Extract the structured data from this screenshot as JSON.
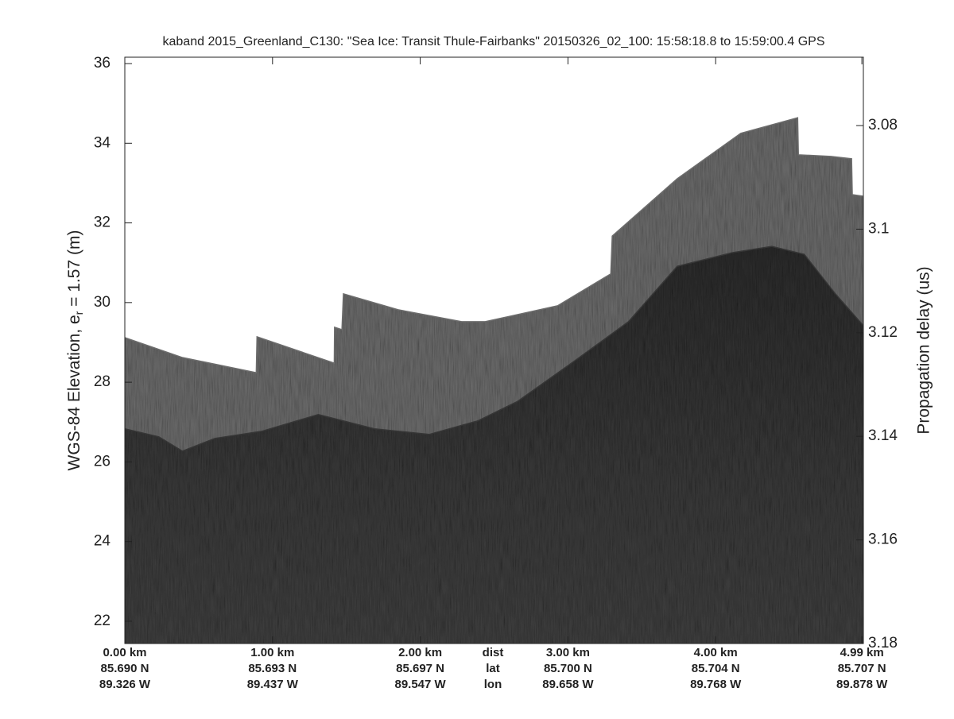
{
  "chart_data": {
    "type": "area",
    "title": "kaband 2015_Greenland_C130: \"Sea Ice: Transit Thule-Fairbanks\"  20150326_02_100: 15:58:18.8 to 15:59:00.4 GPS",
    "ylabel": [
      "WGS-84 Elevation, e",
      "r",
      " = 1.57 (m)"
    ],
    "y2label": "Propagation delay (us)",
    "xlim": [
      0,
      5.0
    ],
    "xticks": [
      {
        "value": 0,
        "label": "0.00 km"
      },
      {
        "value": 1,
        "label": "1.00 km"
      },
      {
        "value": 2,
        "label": "2.00 km"
      },
      {
        "value": 3,
        "label": "3.00 km"
      },
      {
        "value": 4,
        "label": "4.00 km"
      },
      {
        "value": 4.99,
        "label": "4.99 km"
      }
    ],
    "lat_labels": [
      "85.690 N",
      "85.693 N",
      "85.697 N",
      "85.700 N",
      "85.704 N",
      "85.707 N"
    ],
    "lon_labels": [
      "89.326 W",
      "89.437 W",
      "89.547 W",
      "89.658 W",
      "89.768 W",
      "89.878 W"
    ],
    "row_names": [
      "dist",
      "lat",
      "lon"
    ],
    "ylim": [
      21.44,
      36.16
    ],
    "yticks": [
      22,
      24,
      26,
      28,
      30,
      32,
      34,
      36
    ],
    "y2lim": [
      3.18,
      3.0668
    ],
    "y2ticks": [
      3.08,
      3.1,
      3.12,
      3.14,
      3.16,
      3.18
    ],
    "series": [
      {
        "color": "#6d6d6d",
        "x": [
          0,
          0.39,
          0.89,
          0.895,
          1.418,
          1.42,
          1.47,
          1.48,
          1.85,
          2.28,
          2.44,
          2.93,
          3.29,
          3.3,
          3.74,
          4.17,
          4.555,
          4.56,
          4.78,
          4.92,
          4.925,
          5.0
        ],
        "values": [
          29.12,
          28.62,
          28.24,
          29.14,
          28.48,
          29.38,
          29.32,
          30.22,
          29.82,
          29.52,
          29.52,
          29.92,
          30.72,
          31.67,
          33.11,
          34.25,
          34.64,
          33.71,
          33.67,
          33.61,
          32.71,
          32.67
        ]
      },
      {
        "color": "#363636",
        "x": [
          0,
          0.23,
          0.39,
          0.61,
          0.93,
          1.31,
          1.69,
          2.06,
          2.39,
          2.66,
          3.04,
          3.41,
          3.74,
          4.11,
          4.38,
          4.6,
          4.81,
          5.0
        ],
        "values": [
          26.83,
          26.63,
          26.27,
          26.59,
          26.77,
          27.19,
          26.83,
          26.69,
          27.03,
          27.52,
          28.52,
          29.52,
          30.91,
          31.25,
          31.41,
          31.21,
          30.22,
          29.42
        ]
      }
    ]
  }
}
